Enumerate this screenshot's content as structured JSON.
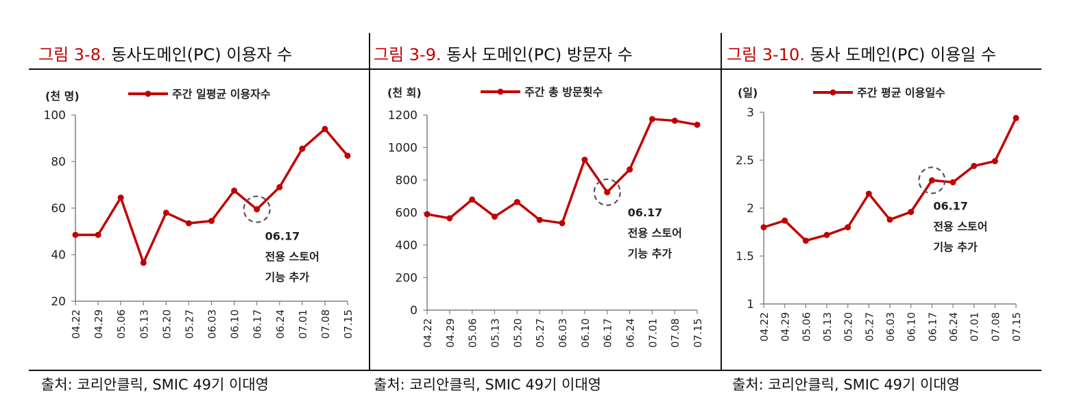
{
  "accent_color": "#c00000",
  "marker_color": "#c00000",
  "sources": [
    "출처: 코리안클릭, SMIC 49기 이대영",
    "출처: 코리안클릭, SMIC 49기 이대영",
    "출처: 코리안클릭, SMIC 49기 이대영"
  ],
  "chart_data": [
    {
      "type": "line",
      "title_number": "그림 3-8.",
      "title_text": "동사도메인(PC) 이용자 수",
      "unit_label": "(천 명)",
      "legend": "주간 일평균 이용자수",
      "x": [
        "04.22",
        "04.29",
        "05.06",
        "05.13",
        "05.20",
        "05.27",
        "06.03",
        "06.10",
        "06.17",
        "06.24",
        "07.01",
        "07.08",
        "07.15"
      ],
      "series": [
        {
          "name": "주간 일평균 이용자수",
          "values": [
            48.5,
            48.5,
            64.5,
            36.5,
            58,
            53.5,
            54.5,
            67.5,
            59.5,
            69,
            85.5,
            94,
            82.5
          ]
        }
      ],
      "ylim": [
        20,
        100
      ],
      "yticks": [
        20,
        40,
        60,
        80,
        100
      ],
      "annotation": {
        "index": 8,
        "lines": [
          "06.17",
          "전용 스토어",
          "기능 추가"
        ]
      },
      "grid": false
    },
    {
      "type": "line",
      "title_number": "그림 3-9.",
      "title_text": "동사 도메인(PC) 방문자 수",
      "unit_label": "(천 회)",
      "legend": "주간 총 방문횟수",
      "x": [
        "04.22",
        "04.29",
        "05.06",
        "05.13",
        "05.20",
        "05.27",
        "06.03",
        "06.10",
        "06.17",
        "06.24",
        "07.01",
        "07.08",
        "07.15"
      ],
      "series": [
        {
          "name": "주간 총 방문횟수",
          "values": [
            590,
            565,
            680,
            575,
            665,
            555,
            535,
            925,
            725,
            865,
            1175,
            1165,
            1140
          ]
        }
      ],
      "ylim": [
        0,
        1200
      ],
      "yticks": [
        0,
        200,
        400,
        600,
        800,
        1000,
        1200
      ],
      "annotation": {
        "index": 8,
        "lines": [
          "06.17",
          "전용 스토어",
          "기능 추가"
        ]
      },
      "grid": false
    },
    {
      "type": "line",
      "title_number": "그림 3-10.",
      "title_text": "동사 도메인(PC) 이용일 수",
      "unit_label": "(일)",
      "legend": "주간 평균 이용일수",
      "x": [
        "04.22",
        "04.29",
        "05.06",
        "05.13",
        "05.20",
        "05.27",
        "06.03",
        "06.10",
        "06.17",
        "06.24",
        "07.01",
        "07.08",
        "07.15"
      ],
      "series": [
        {
          "name": "주간 평균 이용일수",
          "values": [
            1.8,
            1.87,
            1.66,
            1.72,
            1.8,
            2.15,
            1.88,
            1.96,
            2.29,
            2.27,
            2.44,
            2.49,
            2.94
          ]
        }
      ],
      "ylim": [
        1,
        3
      ],
      "yticks": [
        1,
        1.5,
        2,
        2.5,
        3
      ],
      "annotation": {
        "index": 8,
        "lines": [
          "06.17",
          "전용 스토어",
          "기능 추가"
        ]
      },
      "grid": false
    }
  ]
}
